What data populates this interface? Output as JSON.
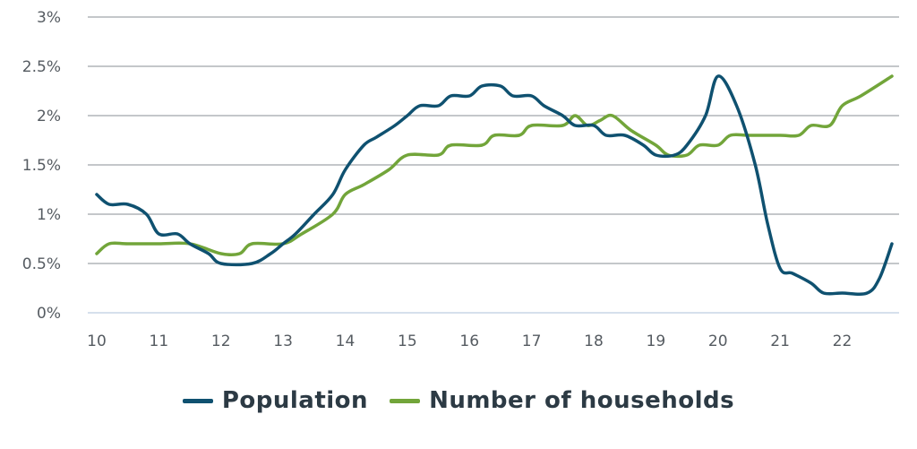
{
  "chart_data": {
    "type": "line",
    "title": "",
    "xlabel": "",
    "ylabel": "",
    "x_ticks": [
      "10",
      "11",
      "12",
      "13",
      "14",
      "15",
      "16",
      "17",
      "18",
      "19",
      "20",
      "21",
      "22"
    ],
    "y_ticks": [
      "0%",
      "0.5%",
      "1%",
      "1.5%",
      "2%",
      "2.5%",
      "3%"
    ],
    "xlim": [
      10,
      22.8
    ],
    "ylim": [
      0,
      3
    ],
    "grid": true,
    "legend_position": "bottom",
    "series": [
      {
        "name": "Population",
        "color": "#0f5170",
        "points": [
          [
            10.0,
            1.2
          ],
          [
            10.2,
            1.1
          ],
          [
            10.5,
            1.1
          ],
          [
            10.8,
            1.0
          ],
          [
            11.0,
            0.8
          ],
          [
            11.3,
            0.8
          ],
          [
            11.5,
            0.7
          ],
          [
            11.8,
            0.6
          ],
          [
            12.0,
            0.5
          ],
          [
            12.5,
            0.5
          ],
          [
            12.8,
            0.6
          ],
          [
            13.0,
            0.7
          ],
          [
            13.2,
            0.8
          ],
          [
            13.5,
            1.0
          ],
          [
            13.8,
            1.2
          ],
          [
            14.0,
            1.45
          ],
          [
            14.3,
            1.7
          ],
          [
            14.5,
            1.78
          ],
          [
            14.8,
            1.9
          ],
          [
            15.0,
            2.0
          ],
          [
            15.2,
            2.1
          ],
          [
            15.5,
            2.1
          ],
          [
            15.7,
            2.2
          ],
          [
            16.0,
            2.2
          ],
          [
            16.2,
            2.3
          ],
          [
            16.5,
            2.3
          ],
          [
            16.7,
            2.2
          ],
          [
            17.0,
            2.2
          ],
          [
            17.2,
            2.1
          ],
          [
            17.5,
            2.0
          ],
          [
            17.7,
            1.9
          ],
          [
            18.0,
            1.9
          ],
          [
            18.2,
            1.8
          ],
          [
            18.5,
            1.8
          ],
          [
            18.8,
            1.7
          ],
          [
            19.0,
            1.6
          ],
          [
            19.3,
            1.6
          ],
          [
            19.5,
            1.7
          ],
          [
            19.8,
            2.0
          ],
          [
            20.0,
            2.4
          ],
          [
            20.3,
            2.1
          ],
          [
            20.6,
            1.5
          ],
          [
            20.8,
            0.9
          ],
          [
            21.0,
            0.45
          ],
          [
            21.2,
            0.4
          ],
          [
            21.5,
            0.3
          ],
          [
            21.7,
            0.2
          ],
          [
            22.0,
            0.2
          ],
          [
            22.4,
            0.2
          ],
          [
            22.6,
            0.35
          ],
          [
            22.8,
            0.7
          ]
        ]
      },
      {
        "name": "Number of households",
        "color": "#72a53a",
        "points": [
          [
            10.0,
            0.6
          ],
          [
            10.2,
            0.7
          ],
          [
            10.5,
            0.7
          ],
          [
            11.0,
            0.7
          ],
          [
            11.5,
            0.7
          ],
          [
            12.0,
            0.6
          ],
          [
            12.3,
            0.6
          ],
          [
            12.5,
            0.7
          ],
          [
            13.0,
            0.7
          ],
          [
            13.3,
            0.8
          ],
          [
            13.8,
            1.0
          ],
          [
            14.0,
            1.2
          ],
          [
            14.3,
            1.3
          ],
          [
            14.7,
            1.45
          ],
          [
            15.0,
            1.6
          ],
          [
            15.5,
            1.6
          ],
          [
            15.7,
            1.7
          ],
          [
            16.2,
            1.7
          ],
          [
            16.4,
            1.8
          ],
          [
            16.8,
            1.8
          ],
          [
            17.0,
            1.9
          ],
          [
            17.5,
            1.9
          ],
          [
            17.7,
            2.0
          ],
          [
            17.9,
            1.9
          ],
          [
            18.1,
            1.95
          ],
          [
            18.3,
            2.0
          ],
          [
            18.6,
            1.85
          ],
          [
            19.0,
            1.7
          ],
          [
            19.2,
            1.6
          ],
          [
            19.5,
            1.6
          ],
          [
            19.7,
            1.7
          ],
          [
            20.0,
            1.7
          ],
          [
            20.2,
            1.8
          ],
          [
            20.5,
            1.8
          ],
          [
            21.0,
            1.8
          ],
          [
            21.3,
            1.8
          ],
          [
            21.5,
            1.9
          ],
          [
            21.8,
            1.9
          ],
          [
            22.0,
            2.1
          ],
          [
            22.3,
            2.2
          ],
          [
            22.8,
            2.4
          ]
        ]
      }
    ]
  }
}
